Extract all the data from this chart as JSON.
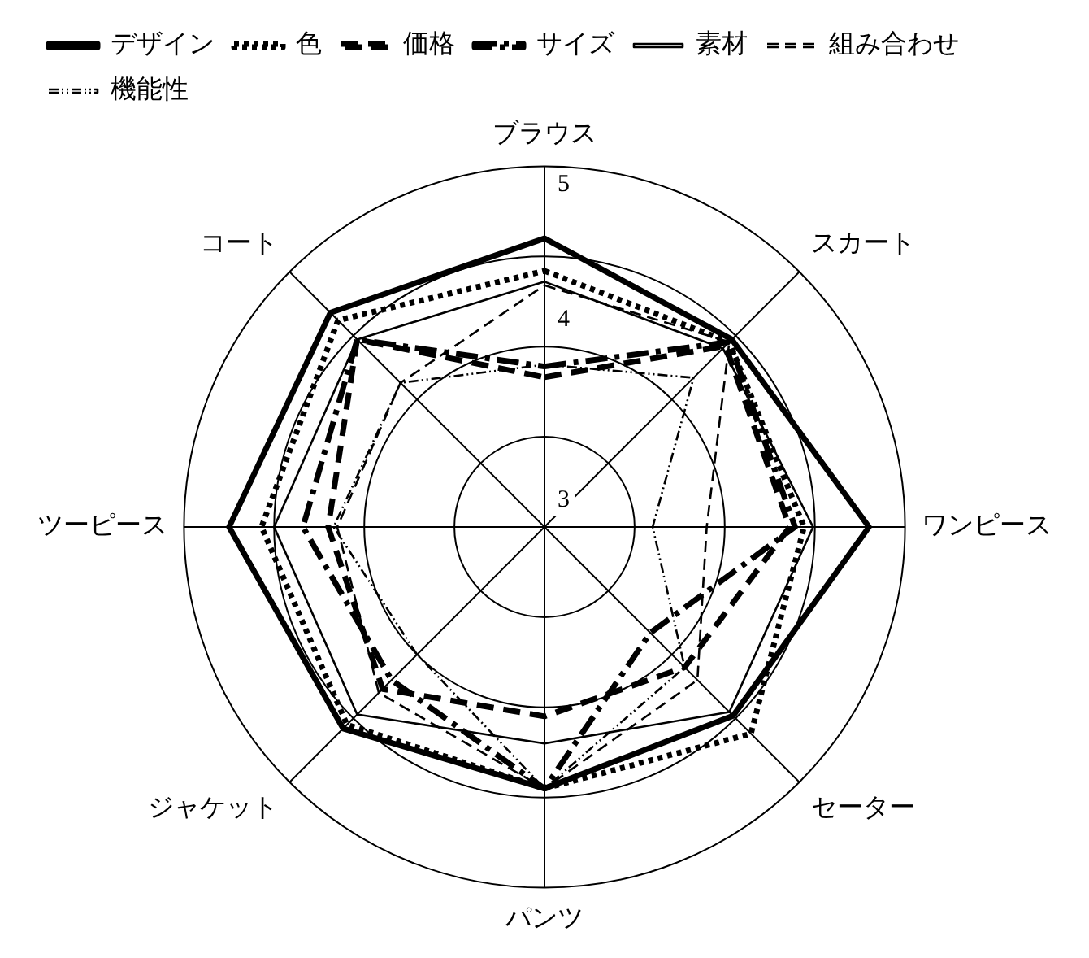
{
  "chart_data": {
    "type": "radar",
    "categories": [
      "ブラウス",
      "スカート",
      "ワンピース",
      "セーター",
      "パンツ",
      "ジャケット",
      "ツーピース",
      "コート"
    ],
    "series": [
      {
        "name": "デザイン",
        "color": "#000000",
        "line_style": "solid",
        "values": [
          4.6,
          4.47,
          4.8,
          4.48,
          4.45,
          4.58,
          4.75,
          4.68
        ]
      },
      {
        "name": "色",
        "color": "#000000",
        "line_style": "dotted",
        "values": [
          4.42,
          4.45,
          4.44,
          4.62,
          4.45,
          4.55,
          4.57,
          4.62
        ]
      },
      {
        "name": "価格",
        "color": "#000000",
        "line_style": "dashed",
        "values": [
          3.83,
          4.42,
          4.36,
          4.1,
          4.05,
          4.27,
          4.2,
          4.47
        ]
      },
      {
        "name": "サイズ",
        "color": "#000000",
        "line_style": "dashdot",
        "values": [
          3.89,
          4.45,
          4.39,
          3.83,
          4.45,
          4.2,
          4.34,
          4.47
        ]
      },
      {
        "name": "素材",
        "color": "#000000",
        "line_style": "solid",
        "values": [
          4.36,
          4.4,
          4.49,
          4.45,
          4.2,
          4.47,
          4.5,
          4.47
        ]
      },
      {
        "name": "組み合わせ",
        "color": "#000000",
        "line_style": "dashed",
        "values": [
          4.34,
          4.45,
          3.9,
          4.2,
          4.45,
          4.3,
          4.15,
          4.13
        ]
      },
      {
        "name": "機能性",
        "color": "#000000",
        "line_style": "dashdotdot",
        "values": [
          3.9,
          4.17,
          3.6,
          4.1,
          4.45,
          4.0,
          4.17,
          4.13
        ]
      }
    ],
    "ylim": [
      3,
      5
    ],
    "yticks": [
      3,
      4,
      5
    ],
    "grid": true,
    "legend": "top",
    "marker": "none"
  }
}
